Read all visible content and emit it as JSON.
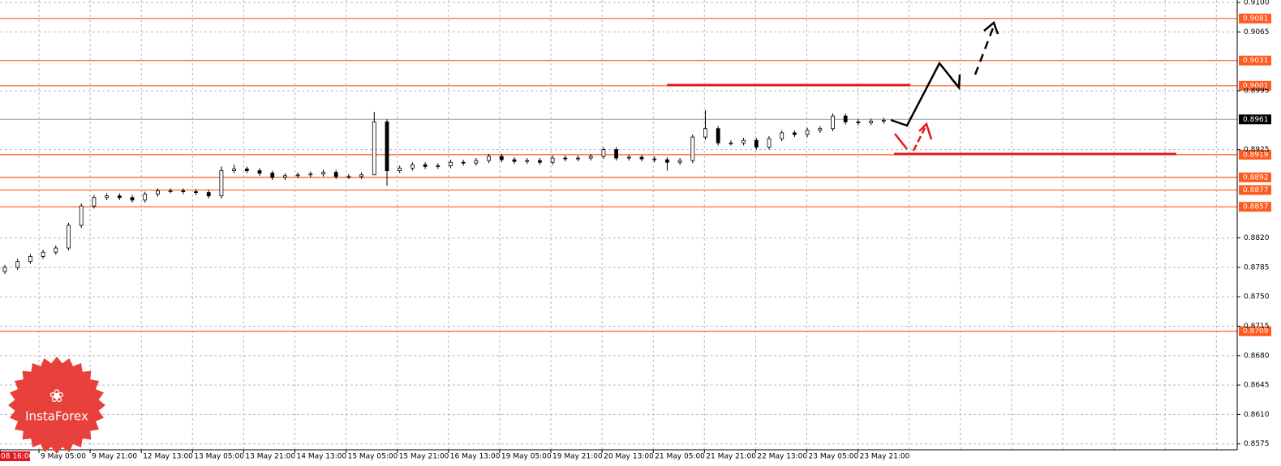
{
  "chart_data": {
    "type": "candlestick",
    "ylim": [
      0.8568,
      0.9103
    ],
    "yticks": [
      {
        "value": 0.91,
        "label": "0.9100"
      },
      {
        "value": 0.9065,
        "label": "0.9065"
      },
      {
        "value": 0.8995,
        "label": "0.8995"
      },
      {
        "value": 0.8925,
        "label": "0.8925"
      },
      {
        "value": 0.882,
        "label": "0.8820"
      },
      {
        "value": 0.8785,
        "label": "0.8785"
      },
      {
        "value": 0.875,
        "label": "0.8750"
      },
      {
        "value": 0.8715,
        "label": "0.8715"
      },
      {
        "value": 0.868,
        "label": "0.8680"
      },
      {
        "value": 0.8645,
        "label": "0.8645"
      },
      {
        "value": 0.861,
        "label": "0.8610"
      },
      {
        "value": 0.8575,
        "label": "0.8575"
      }
    ],
    "grid": true,
    "x_labels": [
      "08 16:00",
      "9 May 05:00",
      "9 May 21:00",
      "12 May 13:00",
      "13 May 05:00",
      "13 May 21:00",
      "14 May 13:00",
      "15 May 05:00",
      "15 May 21:00",
      "16 May 13:00",
      "19 May 05:00",
      "19 May 21:00",
      "20 May 13:00",
      "21 May 05:00",
      "21 May 21:00",
      "22 May 13:00",
      "23 May 05:00",
      "23 May 21:00"
    ],
    "open": [
      0.878,
      0.8785,
      0.8792,
      0.8798,
      0.8803,
      0.8808,
      0.8835,
      0.8858,
      0.8868,
      0.887,
      0.8868,
      0.8865,
      0.8872,
      0.8876,
      0.8876,
      0.8875,
      0.8874,
      0.887,
      0.89,
      0.8902,
      0.89,
      0.8897,
      0.8892,
      0.8894,
      0.8895,
      0.8896,
      0.8898,
      0.8893,
      0.8893,
      0.8895,
      0.8958,
      0.89,
      0.8903,
      0.8907,
      0.8905,
      0.8906,
      0.891,
      0.8909,
      0.8912,
      0.8917,
      0.8913,
      0.8911,
      0.8912,
      0.891,
      0.8915,
      0.8914,
      0.8915,
      0.8917,
      0.8925,
      0.8915,
      0.8916,
      0.8914,
      0.8913,
      0.891,
      0.8912,
      0.894,
      0.895,
      0.8933,
      0.8933,
      0.8936,
      0.8928,
      0.8938,
      0.8945,
      0.8943,
      0.8948,
      0.895,
      0.8965,
      0.8958,
      0.8957,
      0.8959
    ],
    "high": [
      0.8788,
      0.8795,
      0.8801,
      0.8806,
      0.8811,
      0.8838,
      0.8861,
      0.8871,
      0.8873,
      0.8873,
      0.8871,
      0.8875,
      0.8879,
      0.8879,
      0.8879,
      0.8878,
      0.8877,
      0.8905,
      0.8907,
      0.8905,
      0.8903,
      0.89,
      0.8897,
      0.8898,
      0.8899,
      0.8901,
      0.8901,
      0.8896,
      0.8898,
      0.897,
      0.8961,
      0.8906,
      0.891,
      0.891,
      0.8909,
      0.8913,
      0.8913,
      0.8915,
      0.892,
      0.892,
      0.8916,
      0.8915,
      0.8915,
      0.8918,
      0.8918,
      0.8918,
      0.892,
      0.8928,
      0.8928,
      0.8919,
      0.8919,
      0.8917,
      0.8916,
      0.8915,
      0.8943,
      0.8972,
      0.8953,
      0.8936,
      0.8939,
      0.8939,
      0.8941,
      0.8948,
      0.8948,
      0.8951,
      0.8953,
      0.8968,
      0.8968,
      0.8961,
      0.8962,
      0.8963
    ],
    "low": [
      0.8777,
      0.8782,
      0.8789,
      0.8795,
      0.88,
      0.8805,
      0.8832,
      0.8855,
      0.8865,
      0.8865,
      0.8862,
      0.8862,
      0.8869,
      0.8873,
      0.8872,
      0.8871,
      0.8867,
      0.8867,
      0.8897,
      0.8897,
      0.8894,
      0.8889,
      0.8889,
      0.8891,
      0.8892,
      0.8893,
      0.889,
      0.889,
      0.889,
      0.8895,
      0.8882,
      0.8897,
      0.89,
      0.8902,
      0.8902,
      0.8903,
      0.8906,
      0.8906,
      0.8909,
      0.891,
      0.8908,
      0.8908,
      0.8907,
      0.8907,
      0.8911,
      0.8911,
      0.8912,
      0.8914,
      0.8912,
      0.8912,
      0.8911,
      0.891,
      0.89,
      0.8907,
      0.8909,
      0.8937,
      0.893,
      0.893,
      0.893,
      0.8925,
      0.8925,
      0.8935,
      0.894,
      0.894,
      0.8945,
      0.8947,
      0.8955,
      0.8954,
      0.8954,
      0.8956
    ],
    "close": [
      0.8785,
      0.8792,
      0.8798,
      0.8803,
      0.8808,
      0.8835,
      0.8858,
      0.8868,
      0.887,
      0.8868,
      0.8865,
      0.8872,
      0.8876,
      0.8876,
      0.8875,
      0.8874,
      0.887,
      0.89,
      0.8902,
      0.89,
      0.8897,
      0.8892,
      0.8894,
      0.8895,
      0.8896,
      0.8898,
      0.8893,
      0.8893,
      0.8895,
      0.8958,
      0.89,
      0.8903,
      0.8907,
      0.8905,
      0.8906,
      0.891,
      0.8909,
      0.8912,
      0.8917,
      0.8913,
      0.8911,
      0.8912,
      0.891,
      0.8915,
      0.8914,
      0.8915,
      0.8917,
      0.8925,
      0.8915,
      0.8916,
      0.8914,
      0.8913,
      0.891,
      0.8912,
      0.894,
      0.895,
      0.8933,
      0.8933,
      0.8936,
      0.8928,
      0.8938,
      0.8945,
      0.8943,
      0.8948,
      0.895,
      0.8965,
      0.8958,
      0.8957,
      0.8959,
      0.896
    ],
    "levels": [
      {
        "value": 0.9081,
        "color": "#ff5a1f"
      },
      {
        "value": 0.9031,
        "color": "#ff5a1f"
      },
      {
        "value": 0.9001,
        "color": "#ff5a1f"
      },
      {
        "value": 0.8919,
        "color": "#ff5a1f"
      },
      {
        "value": 0.8892,
        "color": "#ff5a1f"
      },
      {
        "value": 0.8877,
        "color": "#ff5a1f"
      },
      {
        "value": 0.8857,
        "color": "#ff5a1f"
      },
      {
        "value": 0.8709,
        "color": "#ff5a1f"
      }
    ],
    "current_price": 0.8961,
    "logo": "InstaForex"
  }
}
